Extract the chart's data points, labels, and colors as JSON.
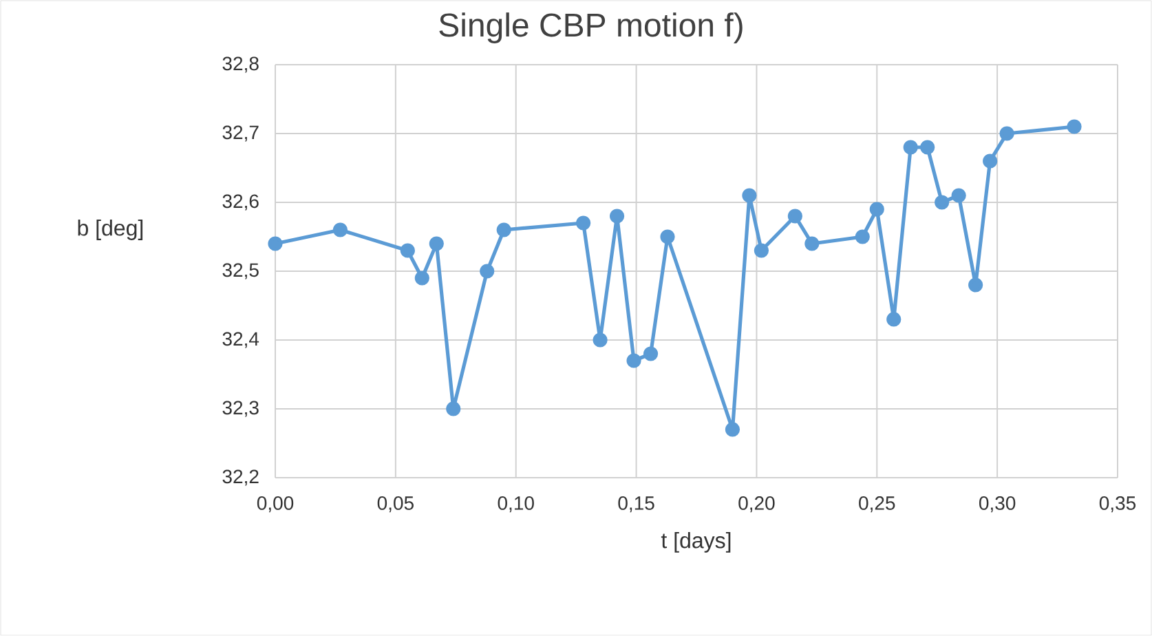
{
  "chart_data": {
    "type": "line",
    "title": "Single CBP motion f)",
    "xlabel": "t [days]",
    "ylabel": "b [deg]",
    "x": [
      0,
      0.027,
      0.055,
      0.061,
      0.067,
      0.074,
      0.088,
      0.095,
      0.128,
      0.135,
      0.142,
      0.149,
      0.156,
      0.163,
      0.19,
      0.197,
      0.202,
      0.216,
      0.223,
      0.244,
      0.25,
      0.257,
      0.264,
      0.271,
      0.277,
      0.284,
      0.291,
      0.297,
      0.304,
      0.332
    ],
    "series": [
      {
        "color": "#5b9bd5",
        "values": [
          32.54,
          32.56,
          32.53,
          32.49,
          32.54,
          32.3,
          32.5,
          32.56,
          32.57,
          32.4,
          32.58,
          32.37,
          32.38,
          32.55,
          32.27,
          32.61,
          32.53,
          32.58,
          32.54,
          32.55,
          32.59,
          32.43,
          32.68,
          32.68,
          32.6,
          32.61,
          32.48,
          32.66,
          32.7,
          32.71
        ]
      }
    ],
    "xlim": [
      0,
      0.35
    ],
    "ylim": [
      32.2,
      32.8
    ],
    "xticks": [
      {
        "value": 0,
        "label": "0,00"
      },
      {
        "value": 0.05,
        "label": "0,05"
      },
      {
        "value": 0.1,
        "label": "0,10"
      },
      {
        "value": 0.15,
        "label": "0,15"
      },
      {
        "value": 0.2,
        "label": "0,20"
      },
      {
        "value": 0.25,
        "label": "0,25"
      },
      {
        "value": 0.3,
        "label": "0,30"
      },
      {
        "value": 0.35,
        "label": "0,35"
      }
    ],
    "yticks": [
      {
        "value": 32.2,
        "label": "32,2"
      },
      {
        "value": 32.3,
        "label": "32,3"
      },
      {
        "value": 32.4,
        "label": "32,4"
      },
      {
        "value": 32.5,
        "label": "32,5"
      },
      {
        "value": 32.6,
        "label": "32,6"
      },
      {
        "value": 32.7,
        "label": "32,7"
      },
      {
        "value": 32.8,
        "label": "32,8"
      }
    ],
    "grid": true,
    "marker": "circle",
    "line_style": "solid"
  }
}
